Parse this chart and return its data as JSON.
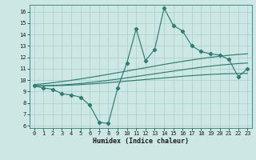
{
  "main_x": [
    0,
    1,
    2,
    3,
    4,
    5,
    6,
    7,
    8,
    9,
    10,
    11,
    12,
    13,
    14,
    15,
    16,
    17,
    18,
    19,
    20,
    21,
    22,
    23
  ],
  "main_y": [
    9.5,
    9.3,
    9.2,
    8.8,
    8.7,
    8.5,
    7.8,
    6.3,
    6.2,
    9.3,
    11.5,
    14.5,
    11.7,
    12.7,
    16.3,
    14.8,
    14.3,
    13.0,
    12.5,
    12.3,
    12.2,
    11.8,
    10.3,
    11.0
  ],
  "upper_ctrl_x": [
    0,
    5,
    10,
    15,
    20,
    23
  ],
  "upper_ctrl_y": [
    9.6,
    10.1,
    10.8,
    11.5,
    12.1,
    12.3
  ],
  "mid_ctrl_x": [
    0,
    5,
    10,
    15,
    20,
    23
  ],
  "mid_ctrl_y": [
    9.5,
    9.7,
    10.2,
    10.8,
    11.3,
    11.5
  ],
  "low_ctrl_x": [
    0,
    5,
    10,
    15,
    20,
    23
  ],
  "low_ctrl_y": [
    9.5,
    9.6,
    9.9,
    10.3,
    10.5,
    10.6
  ],
  "line_color": "#2e7d74",
  "bg_color": "#cde8e4",
  "grid_color": "#aacfca",
  "xlim": [
    -0.5,
    23.5
  ],
  "ylim": [
    5.8,
    16.6
  ],
  "yticks": [
    6,
    7,
    8,
    9,
    10,
    11,
    12,
    13,
    14,
    15,
    16
  ],
  "xticks": [
    0,
    1,
    2,
    3,
    4,
    5,
    6,
    7,
    8,
    9,
    10,
    11,
    12,
    13,
    14,
    15,
    16,
    17,
    18,
    19,
    20,
    21,
    22,
    23
  ],
  "xlabel": "Humidex (Indice chaleur)"
}
